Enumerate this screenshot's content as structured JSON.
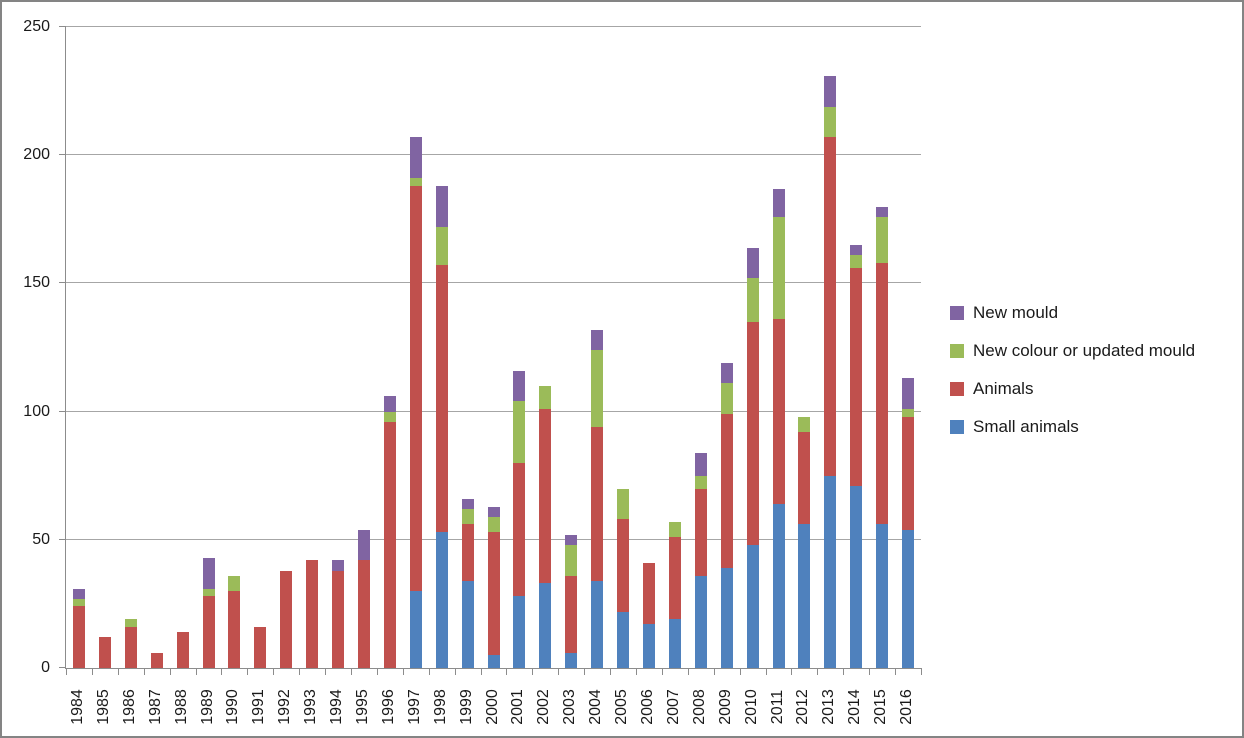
{
  "chart_data": {
    "type": "bar",
    "stacked": true,
    "title": "",
    "xlabel": "",
    "ylabel": "",
    "categories": [
      "1984",
      "1985",
      "1986",
      "1987",
      "1988",
      "1989",
      "1990",
      "1991",
      "1992",
      "1993",
      "1994",
      "1995",
      "1996",
      "1997",
      "1998",
      "1999",
      "2000",
      "2001",
      "2002",
      "2003",
      "2004",
      "2005",
      "2006",
      "2007",
      "2008",
      "2009",
      "2010",
      "2011",
      "2012",
      "2013",
      "2014",
      "2015",
      "2016"
    ],
    "series": [
      {
        "name": "Small animals",
        "color": "#4f81bd",
        "values": [
          0,
          0,
          0,
          0,
          0,
          0,
          0,
          0,
          0,
          0,
          0,
          0,
          0,
          30,
          53,
          34,
          5,
          28,
          33,
          6,
          34,
          22,
          17,
          19,
          36,
          39,
          48,
          64,
          56,
          75,
          71,
          56,
          54
        ]
      },
      {
        "name": "Animals",
        "color": "#c0504d",
        "values": [
          24,
          12,
          16,
          6,
          14,
          28,
          30,
          16,
          38,
          42,
          38,
          42,
          96,
          158,
          104,
          22,
          48,
          52,
          68,
          30,
          60,
          36,
          24,
          32,
          34,
          60,
          87,
          72,
          36,
          132,
          85,
          102,
          44
        ]
      },
      {
        "name": "New colour or updated mould",
        "color": "#9bbb59",
        "values": [
          3,
          0,
          3,
          0,
          0,
          3,
          6,
          0,
          0,
          0,
          0,
          0,
          4,
          3,
          15,
          6,
          6,
          24,
          9,
          12,
          30,
          12,
          0,
          6,
          5,
          12,
          17,
          40,
          6,
          12,
          5,
          18,
          3
        ]
      },
      {
        "name": "New mould",
        "color": "#8064a2",
        "values": [
          4,
          0,
          0,
          0,
          0,
          12,
          0,
          0,
          0,
          0,
          4,
          12,
          6,
          16,
          16,
          4,
          4,
          12,
          0,
          4,
          8,
          0,
          0,
          0,
          9,
          8,
          12,
          11,
          0,
          12,
          4,
          4,
          12
        ]
      }
    ],
    "totals": [
      31,
      12,
      19,
      6,
      14,
      43,
      36,
      16,
      38,
      42,
      42,
      54,
      106,
      207,
      188,
      66,
      63,
      116,
      110,
      52,
      132,
      70,
      41,
      57,
      84,
      119,
      164,
      187,
      98,
      231,
      165,
      180,
      113
    ],
    "ylim": [
      0,
      250
    ],
    "yticks": [
      0,
      50,
      100,
      150,
      200,
      250
    ],
    "grid": true,
    "legend_position": "right",
    "legend_order": [
      "New mould",
      "New colour or updated mould",
      "Animals",
      "Small animals"
    ]
  },
  "colors": {
    "gridline": "#a6a6a6",
    "axis": "#8c8c8c",
    "text": "#1a1a1a",
    "frame_border": "#848484",
    "background": "#ffffff"
  }
}
